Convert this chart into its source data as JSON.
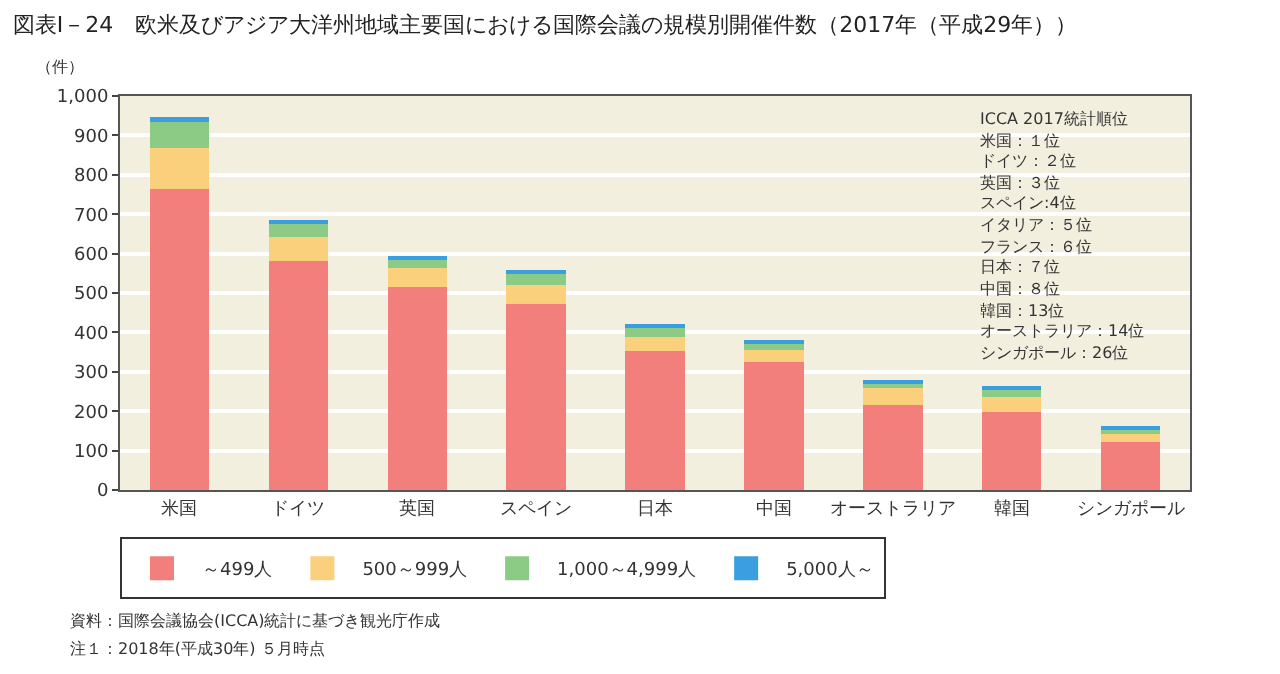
{
  "chart_data": {
    "type": "bar",
    "stacked": true,
    "title": "図表Ⅰ－24　欧米及びアジア大洋州地域主要国における国際会議の規模別開催件数（2017年（平成29年））",
    "ylabel": "（件）",
    "categories": [
      "米国",
      "ドイツ",
      "英国",
      "スペイン",
      "日本",
      "中国",
      "オーストラリア",
      "韓国",
      "シンガポール"
    ],
    "series": [
      {
        "name": "～499人",
        "color": "#f27f7c",
        "values": [
          764,
          582,
          514,
          471,
          353,
          324,
          215,
          199,
          122
        ]
      },
      {
        "name": "500～999人",
        "color": "#fbd07c",
        "values": [
          105,
          59,
          50,
          50,
          35,
          32,
          45,
          37,
          19
        ]
      },
      {
        "name": "1,000～4,999人",
        "color": "#8ccb86",
        "values": [
          70,
          35,
          21,
          30,
          24,
          16,
          12,
          19,
          13
        ]
      },
      {
        "name": "5,000人～",
        "color": "#3a9ee0",
        "values": [
          8,
          8,
          8,
          8,
          6,
          6,
          8,
          6,
          8
        ]
      }
    ],
    "ylim": [
      0,
      1000
    ],
    "yticks": [
      0,
      {
        "value": 100,
        "label": "100"
      },
      200,
      300,
      400,
      500,
      600,
      700,
      800,
      900,
      {
        "value": 1000,
        "label": "1,000"
      }
    ],
    "grid": "y",
    "legend": "bottom",
    "annotations": [
      "ICCA 2017統計順位",
      "米国：１位",
      "ドイツ：２位",
      "英国：３位",
      "スペイン:4位",
      "イタリア：５位",
      "フランス：６位",
      "日本：７位",
      "中国：８位",
      "韓国：13位",
      "オーストラリア：14位",
      "シンガポール：26位",
      "資料：国際会議協会(ICCA)統計に基づき観光庁作成",
      "注１：2018年(平成30年) ５月時点"
    ]
  }
}
